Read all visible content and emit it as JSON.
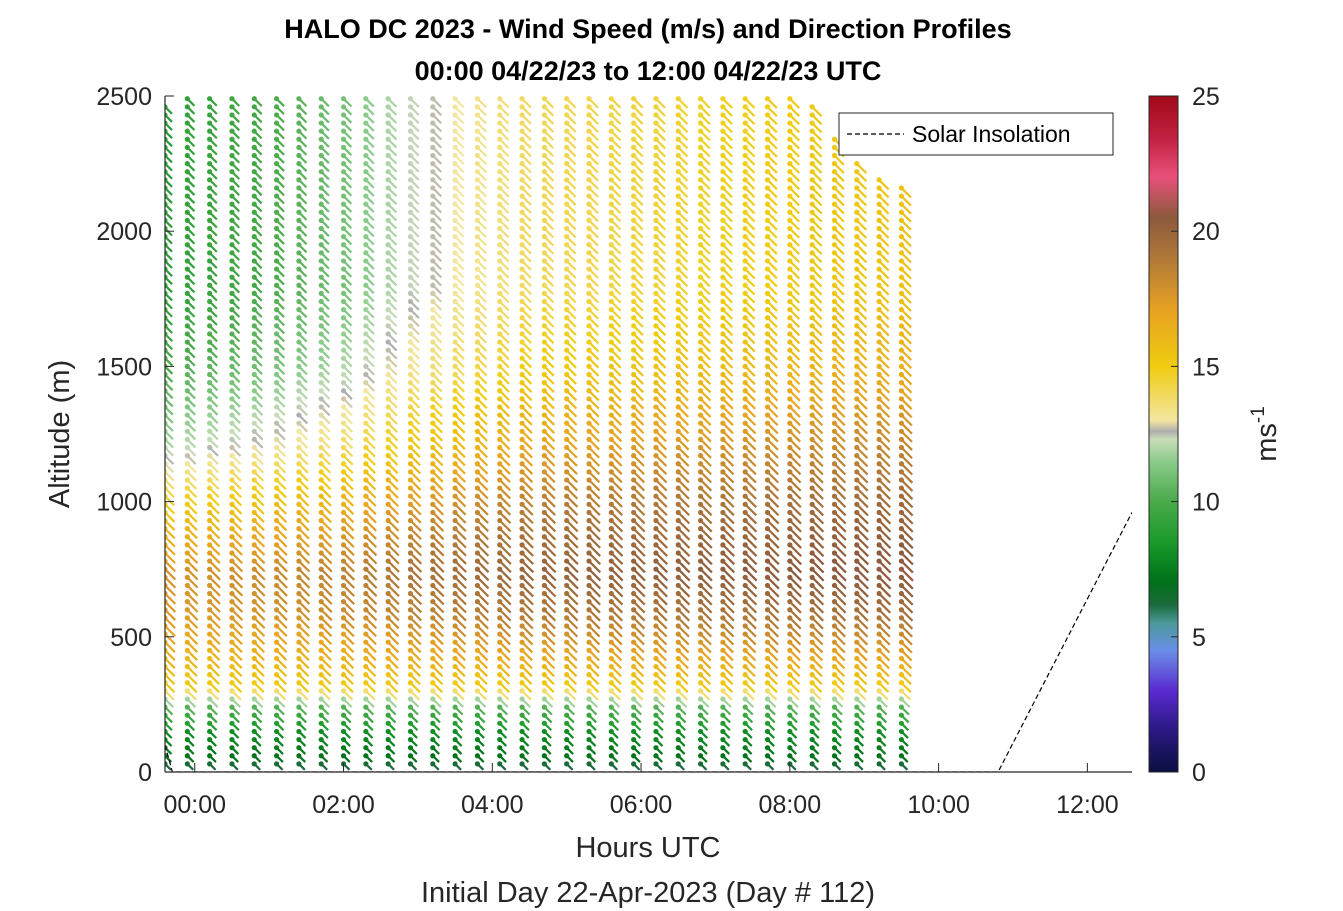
{
  "chart_data": {
    "type": "scatter",
    "title": "HALO DC 2023 - Wind Speed (m/s) and Direction Profiles",
    "subtitle": "00:00 04/22/23 to 12:00 04/22/23  UTC",
    "xlabel": "Hours UTC",
    "xlabel2": "Initial Day 22-Apr-2023 (Day # 112)",
    "ylabel": "Altitude (m)",
    "xlim": [
      -0.4,
      12.6
    ],
    "ylim": [
      0,
      2500
    ],
    "x_ticks": [
      {
        "value": 0,
        "label": "00:00"
      },
      {
        "value": 2,
        "label": "02:00"
      },
      {
        "value": 4,
        "label": "04:00"
      },
      {
        "value": 6,
        "label": "06:00"
      },
      {
        "value": 8,
        "label": "08:00"
      },
      {
        "value": 10,
        "label": "10:00"
      },
      {
        "value": 12,
        "label": "12:00"
      }
    ],
    "y_ticks": [
      {
        "value": 0,
        "label": "0"
      },
      {
        "value": 500,
        "label": "500"
      },
      {
        "value": 1000,
        "label": "1000"
      },
      {
        "value": 1500,
        "label": "1500"
      },
      {
        "value": 2000,
        "label": "2000"
      },
      {
        "value": 2500,
        "label": "2500"
      }
    ],
    "grid": false,
    "legend": {
      "placement": "top-right",
      "entries": [
        "Solar Insolation"
      ]
    },
    "colorbar": {
      "label": "ms-1",
      "label_base": "ms",
      "label_exp": "-1",
      "range": [
        0,
        25
      ],
      "ticks": [
        {
          "value": 0,
          "label": "0"
        },
        {
          "value": 5,
          "label": "5"
        },
        {
          "value": 10,
          "label": "10"
        },
        {
          "value": 15,
          "label": "15"
        },
        {
          "value": 20,
          "label": "20"
        },
        {
          "value": 25,
          "label": "25"
        }
      ],
      "stops": [
        {
          "v": 0,
          "c": "#0a1040"
        },
        {
          "v": 1.5,
          "c": "#2a1880"
        },
        {
          "v": 3,
          "c": "#5a2ad0"
        },
        {
          "v": 4.5,
          "c": "#6a8ee8"
        },
        {
          "v": 5.5,
          "c": "#4a9a9a"
        },
        {
          "v": 6.2,
          "c": "#1a6a3a"
        },
        {
          "v": 7,
          "c": "#00701a"
        },
        {
          "v": 8.5,
          "c": "#1a9a2a"
        },
        {
          "v": 10,
          "c": "#4aaa4a"
        },
        {
          "v": 11.5,
          "c": "#8ccc8c"
        },
        {
          "v": 12.3,
          "c": "#c8dcb8"
        },
        {
          "v": 12.6,
          "c": "#aeaeae"
        },
        {
          "v": 13,
          "c": "#f2e6a0"
        },
        {
          "v": 14,
          "c": "#f2d85a"
        },
        {
          "v": 15,
          "c": "#f0cc10"
        },
        {
          "v": 17,
          "c": "#e8a422"
        },
        {
          "v": 19,
          "c": "#b07838"
        },
        {
          "v": 20.5,
          "c": "#8c5a3c"
        },
        {
          "v": 22,
          "c": "#e8507a"
        },
        {
          "v": 23.5,
          "c": "#c02040"
        },
        {
          "v": 25,
          "c": "#a00a18"
        }
      ]
    },
    "profile_times_hours": [
      -0.4,
      -0.1,
      0.2,
      0.5,
      0.8,
      1.1,
      1.4,
      1.7,
      2.0,
      2.3,
      2.6,
      2.9,
      3.2,
      3.5,
      3.8,
      4.1,
      4.4,
      4.7,
      5.0,
      5.3,
      5.6,
      5.9,
      6.2,
      6.5,
      6.8,
      7.1,
      7.4,
      7.7,
      8.0,
      8.3,
      8.6,
      8.9,
      9.2,
      9.5
    ],
    "profile_tops_m": [
      2470,
      2490,
      2490,
      2490,
      2490,
      2490,
      2490,
      2490,
      2490,
      2490,
      2490,
      2490,
      2490,
      2490,
      2490,
      2490,
      2490,
      2490,
      2490,
      2490,
      2490,
      2490,
      2490,
      2490,
      2490,
      2490,
      2490,
      2490,
      2490,
      2480,
      2340,
      2270,
      2210,
      2170
    ],
    "range_gate_spacing_m": 30,
    "wind_speed_profile": [
      {
        "alt": 0,
        "speed": 5
      },
      {
        "alt": 50,
        "speed": 7
      },
      {
        "alt": 150,
        "speed": 8
      },
      {
        "alt": 250,
        "speed": 10.5
      },
      {
        "alt": 320,
        "speed": 15
      },
      {
        "alt": 450,
        "speed": 17
      },
      {
        "alt": 600,
        "speed": 19
      },
      {
        "alt": 750,
        "speed": 20
      },
      {
        "alt": 950,
        "speed": 19
      },
      {
        "alt": 1200,
        "speed": 17
      },
      {
        "alt": 1500,
        "speed": 15
      },
      {
        "alt": 1800,
        "speed": 14
      },
      {
        "alt": 2100,
        "speed": 14
      },
      {
        "alt": 2490,
        "speed": 14
      }
    ],
    "speed_time_adjust": [
      {
        "t": -0.4,
        "upper": -5
      },
      {
        "t": 1.0,
        "upper": -4
      },
      {
        "t": 2.0,
        "upper": -3
      },
      {
        "t": 3.0,
        "upper": -1.5
      },
      {
        "t": 4.5,
        "upper": 0
      },
      {
        "t": 9.5,
        "upper": 1.5
      }
    ],
    "wind_direction_deg": 225,
    "solar_insolation": [
      {
        "t": -0.4,
        "altitude": 100
      },
      {
        "t": -0.3,
        "altitude": 0
      },
      {
        "t": 10.8,
        "altitude": 0
      },
      {
        "t": 12.6,
        "altitude": 960
      }
    ]
  }
}
